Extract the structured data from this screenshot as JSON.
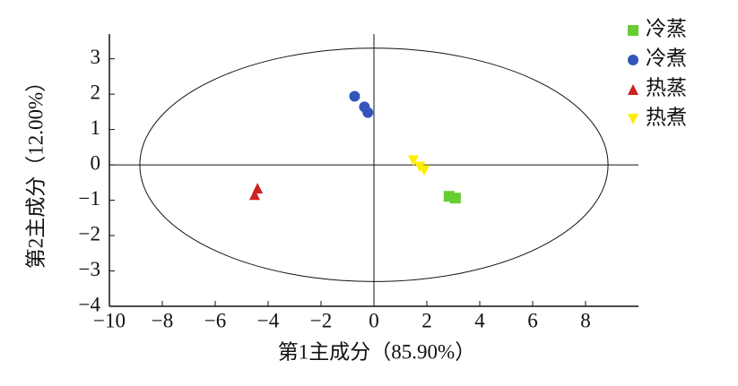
{
  "chart_data": {
    "type": "scatter",
    "xlabel": "第1主成分（85.90%）",
    "ylabel": "第2主成分（12.00%）",
    "xlim": [
      -10,
      10
    ],
    "ylim": [
      -4,
      3.7
    ],
    "xticks": [
      {
        "value": -10,
        "label": "−10"
      },
      {
        "value": -8,
        "label": "−8"
      },
      {
        "value": -6,
        "label": "−6"
      },
      {
        "value": -4,
        "label": "−4"
      },
      {
        "value": -2,
        "label": "−2"
      },
      0,
      2,
      4,
      6,
      8
    ],
    "yticks": [
      {
        "value": -4,
        "label": "−4"
      },
      {
        "value": -3,
        "label": "−3"
      },
      {
        "value": -2,
        "label": "−2"
      },
      {
        "value": -1,
        "label": "−1"
      },
      0,
      1,
      2,
      3
    ],
    "ellipse": {
      "rx": 8.85,
      "ry": 3.3
    },
    "legend": "upper right",
    "series": [
      {
        "name": "冷蒸",
        "color": "#66cc33",
        "marker": "square",
        "x": [
          2.84,
          3.08
        ],
        "y": [
          -0.89,
          -0.94
        ]
      },
      {
        "name": "冷煮",
        "color": "#3355bb",
        "marker": "circle",
        "x": [
          -0.73,
          -0.36,
          -0.23
        ],
        "y": [
          1.94,
          1.64,
          1.48
        ]
      },
      {
        "name": "热蒸",
        "color": "#cc2222",
        "marker": "triangle",
        "x": [
          -4.4,
          -4.51
        ],
        "y": [
          -0.66,
          -0.84
        ]
      },
      {
        "name": "热煮",
        "color": "#ffee00",
        "marker": "triangle-down",
        "x": [
          1.49,
          1.73,
          1.9
        ],
        "y": [
          0.12,
          -0.06,
          -0.16
        ]
      }
    ]
  }
}
